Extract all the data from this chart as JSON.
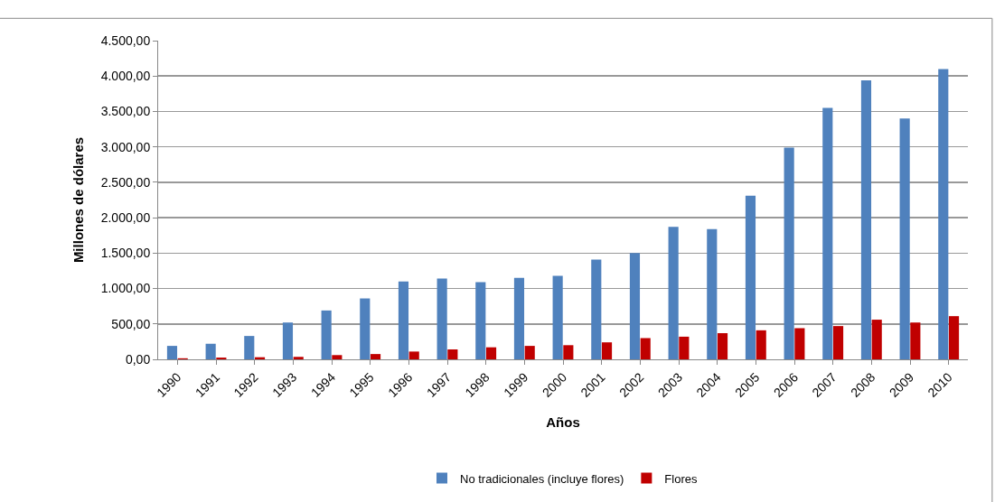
{
  "chart_data": {
    "type": "bar",
    "xlabel": "Años",
    "ylabel": "Millones de dólares",
    "categories": [
      "1990",
      "1991",
      "1992",
      "1993",
      "1994",
      "1995",
      "1996",
      "1997",
      "1998",
      "1999",
      "2000",
      "2001",
      "2002",
      "2003",
      "2004",
      "2005",
      "2006",
      "2007",
      "2008",
      "2009",
      "2010"
    ],
    "series": [
      {
        "name": "No tradicionales (incluye flores)",
        "color": "#4f81bd",
        "values": [
          190,
          220,
          330,
          520,
          690,
          860,
          1100,
          1140,
          1090,
          1150,
          1180,
          1410,
          1500,
          1870,
          1840,
          2310,
          2990,
          3550,
          3940,
          3400,
          4100
        ]
      },
      {
        "name": "Flores",
        "color": "#c00000",
        "values": [
          15,
          25,
          30,
          35,
          60,
          75,
          110,
          140,
          170,
          190,
          200,
          240,
          300,
          320,
          370,
          410,
          440,
          470,
          560,
          520,
          610
        ]
      }
    ],
    "ylim": [
      0,
      4500
    ],
    "yticks": [
      {
        "value": 0,
        "label": "0,00"
      },
      {
        "value": 500,
        "label": "500,00"
      },
      {
        "value": 1000,
        "label": "1.000,00"
      },
      {
        "value": 1500,
        "label": "1.500,00"
      },
      {
        "value": 2000,
        "label": "2.000,00"
      },
      {
        "value": 2500,
        "label": "2.500,00"
      },
      {
        "value": 3000,
        "label": "3.000,00"
      },
      {
        "value": 3500,
        "label": "3.500,00"
      },
      {
        "value": 4000,
        "label": "4.000,00"
      },
      {
        "value": 4500,
        "label": "4.500,00"
      }
    ],
    "grid": "y",
    "legend": "bottom"
  }
}
